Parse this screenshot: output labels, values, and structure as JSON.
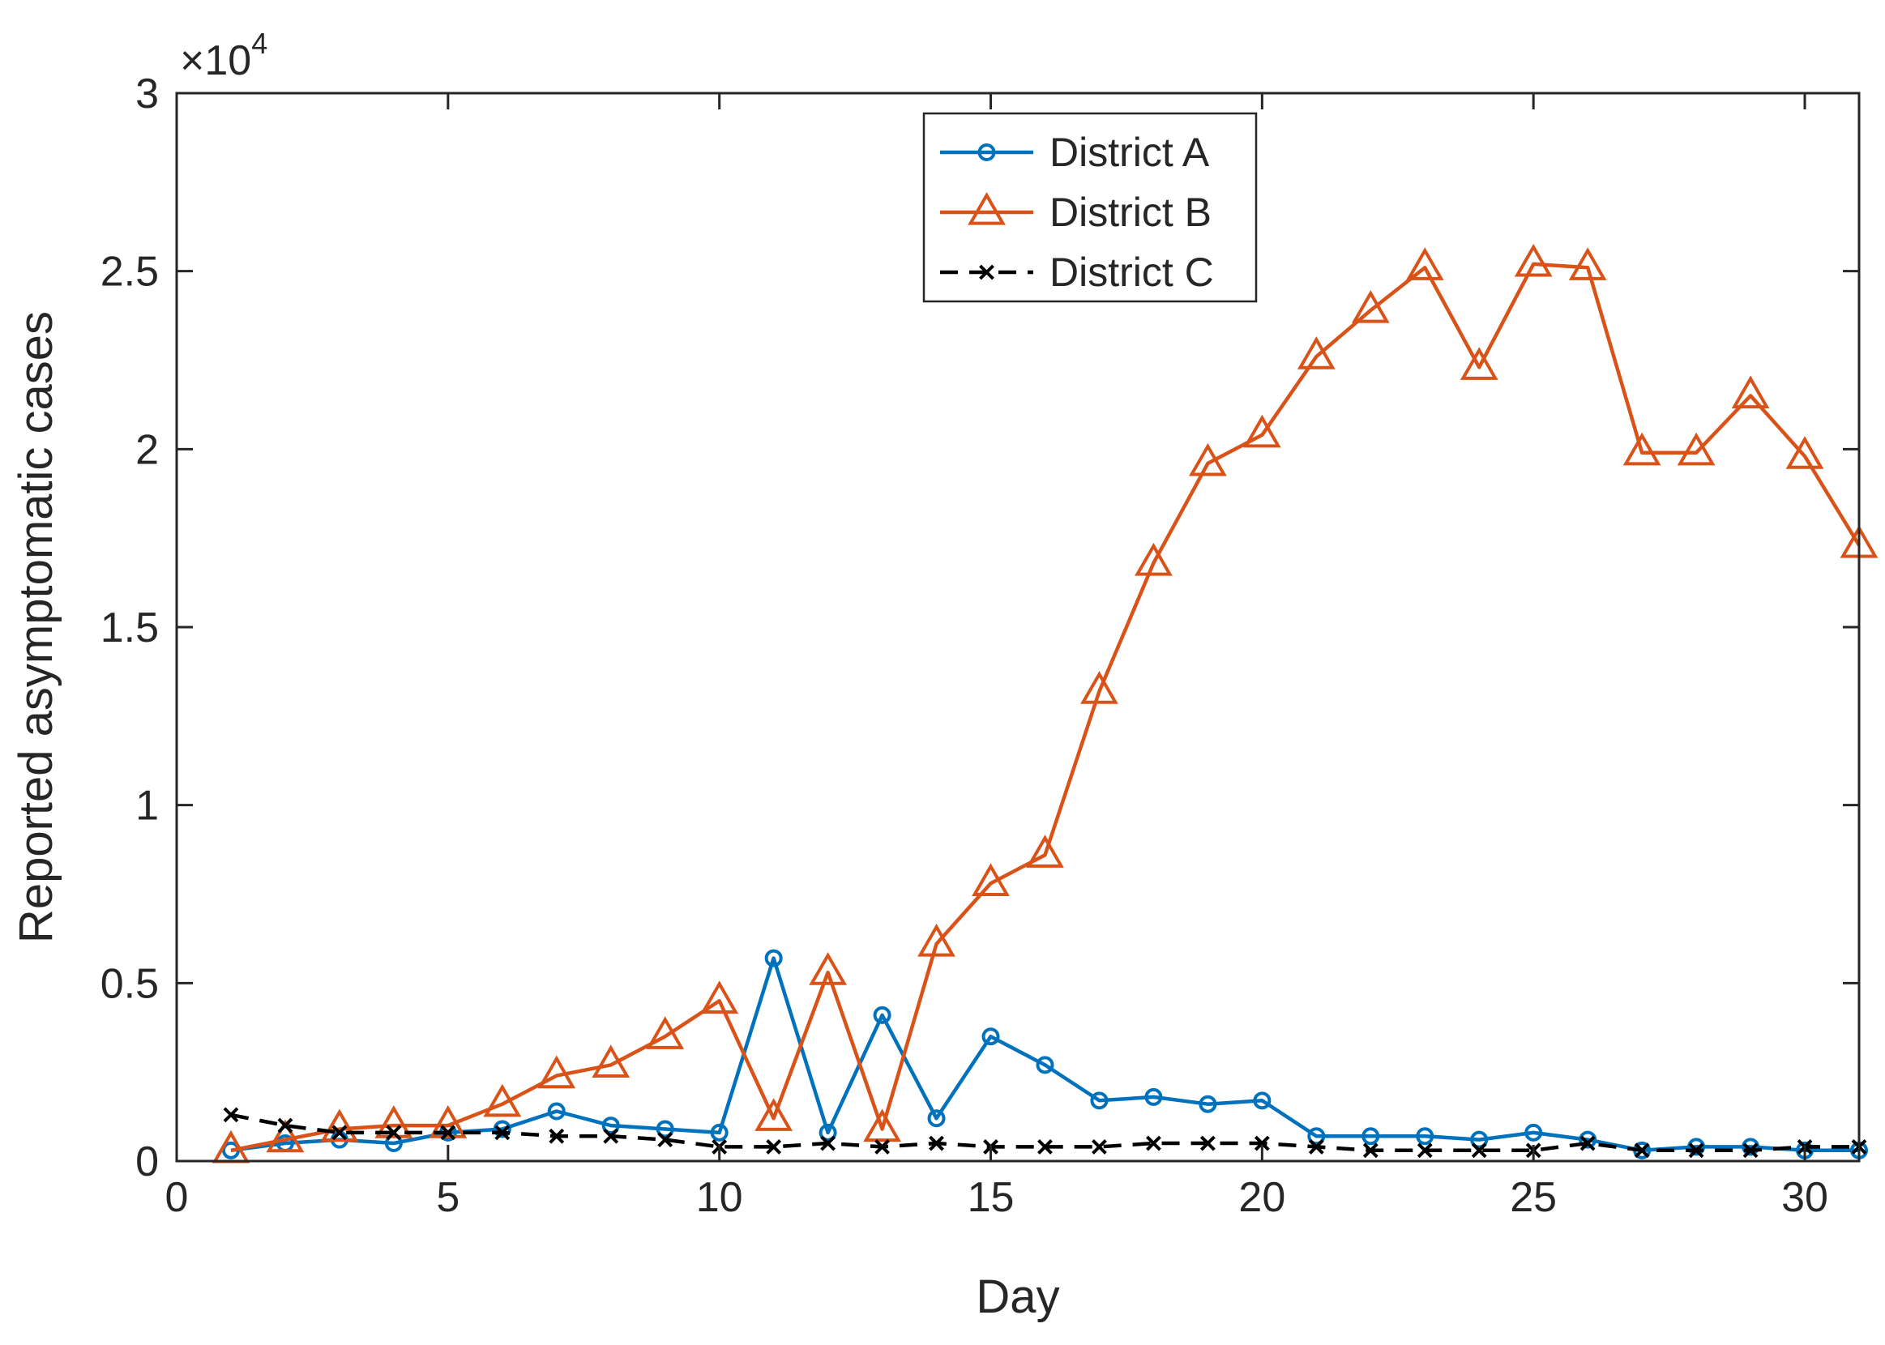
{
  "chart_data": {
    "type": "line",
    "title": "",
    "xlabel": "Day",
    "ylabel": "Reported asymptomatic cases",
    "y_exponent_label": "×10",
    "y_exponent_power": "4",
    "xlim": [
      0,
      31
    ],
    "ylim": [
      0,
      30000
    ],
    "xticks": [
      0,
      5,
      10,
      15,
      20,
      25,
      30
    ],
    "xtick_labels": [
      "0",
      "5",
      "10",
      "15",
      "20",
      "25",
      "30"
    ],
    "yticks": [
      0,
      5000,
      10000,
      15000,
      20000,
      25000,
      30000
    ],
    "ytick_labels": [
      "0",
      "0.5",
      "1",
      "1.5",
      "2",
      "2.5",
      "3"
    ],
    "grid": false,
    "legend_position": "top-center",
    "x": [
      1,
      2,
      3,
      4,
      5,
      6,
      7,
      8,
      9,
      10,
      11,
      12,
      13,
      14,
      15,
      16,
      17,
      18,
      19,
      20,
      21,
      22,
      23,
      24,
      25,
      26,
      27,
      28,
      29,
      30,
      31
    ],
    "series": [
      {
        "name": "District A",
        "color": "#0072BD",
        "marker": "circle",
        "line": "solid",
        "values": [
          300,
          500,
          600,
          500,
          800,
          900,
          1400,
          1000,
          900,
          800,
          5700,
          800,
          4100,
          1200,
          3500,
          2700,
          1700,
          1800,
          1600,
          1700,
          700,
          700,
          700,
          600,
          800,
          600,
          300,
          400,
          400,
          300,
          300
        ]
      },
      {
        "name": "District B",
        "color": "#D95319",
        "marker": "triangle",
        "line": "solid",
        "values": [
          300,
          600,
          900,
          1000,
          1000,
          1600,
          2400,
          2700,
          3500,
          4500,
          1200,
          5300,
          900,
          6100,
          7800,
          8600,
          13200,
          16800,
          19600,
          20400,
          22600,
          23900,
          25100,
          22300,
          25200,
          25100,
          19900,
          19900,
          21500,
          19800,
          17300
        ]
      },
      {
        "name": "District C",
        "color": "#000000",
        "marker": "x",
        "line": "dashed",
        "values": [
          1300,
          1000,
          800,
          800,
          800,
          800,
          700,
          700,
          600,
          400,
          400,
          500,
          400,
          500,
          400,
          400,
          400,
          500,
          500,
          500,
          400,
          300,
          300,
          300,
          300,
          500,
          300,
          300,
          300,
          400,
          400
        ]
      }
    ]
  }
}
